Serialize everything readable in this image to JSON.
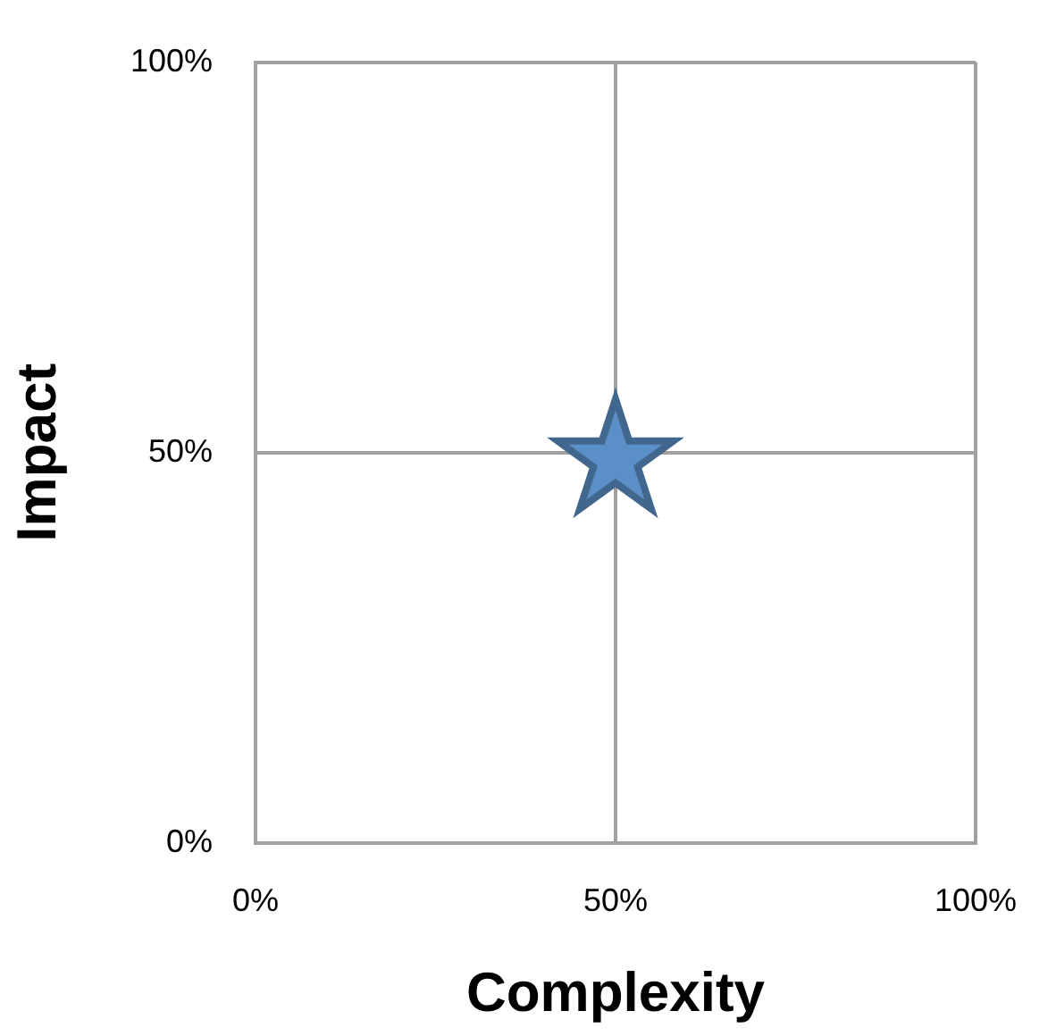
{
  "chart_data": {
    "type": "scatter",
    "xlabel": "Complexity",
    "ylabel": "Impact",
    "series": [
      {
        "color": "#5b8fc7",
        "x": [
          50
        ],
        "values": [
          50
        ]
      }
    ],
    "xlim": [
      0,
      100
    ],
    "ylim": [
      0,
      100
    ],
    "xticks": [
      {
        "value": 0,
        "label": "0%"
      },
      {
        "value": 50,
        "label": "50%"
      },
      {
        "value": 100,
        "label": "100%"
      }
    ],
    "yticks": [
      {
        "value": 0,
        "label": "0%"
      },
      {
        "value": 50,
        "label": "50%"
      },
      {
        "value": 100,
        "label": "100%"
      }
    ],
    "grid": true,
    "legend": false,
    "marker": "star"
  }
}
